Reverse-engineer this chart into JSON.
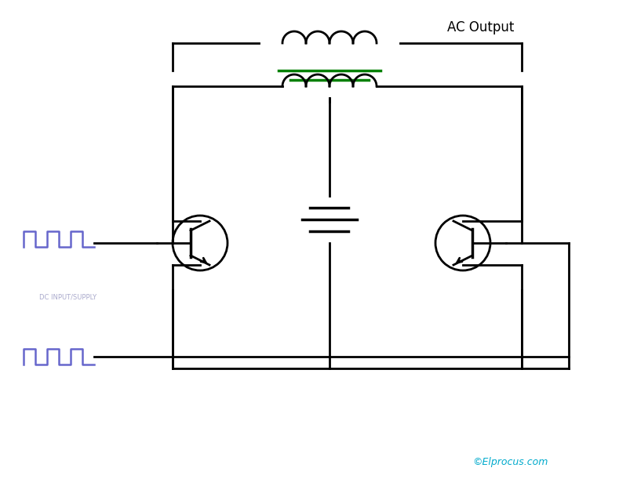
{
  "bg_color": "#ffffff",
  "line_color": "#000000",
  "green_color": "#008000",
  "blue_color": "#6666cc",
  "cyan_color": "#00aacc",
  "title": "©Elprocus.com",
  "ac_output_text": "AC Output",
  "fig_width": 7.89,
  "fig_height": 6.2,
  "dpi": 100
}
